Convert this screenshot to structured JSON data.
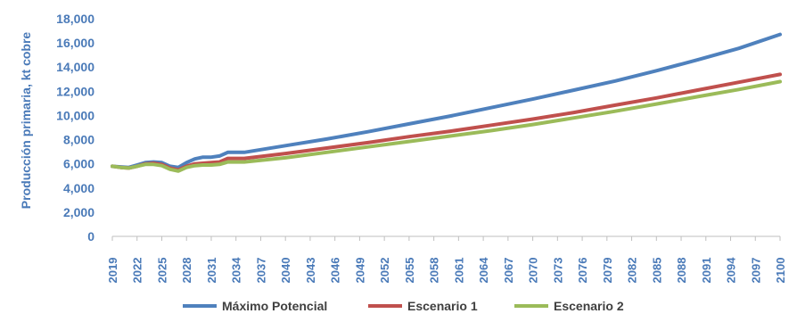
{
  "chart_data": {
    "type": "line",
    "title": "",
    "xlabel": "",
    "ylabel": "Producción primaria, kt cobre",
    "ylim": [
      0,
      18000
    ],
    "yticks": [
      0,
      2000,
      4000,
      6000,
      8000,
      10000,
      12000,
      14000,
      16000,
      18000
    ],
    "ytick_labels": [
      "0",
      "2,000",
      "4,000",
      "6,000",
      "8,000",
      "10,000",
      "12,000",
      "14,000",
      "16,000",
      "18,000"
    ],
    "xlim": [
      2019,
      2100
    ],
    "xticks": [
      "2019",
      "2022",
      "2025",
      "2028",
      "2031",
      "2034",
      "2037",
      "2040",
      "2043",
      "2046",
      "2049",
      "2052",
      "2055",
      "2058",
      "2061",
      "2064",
      "2067",
      "2070",
      "2073",
      "2076",
      "2079",
      "2082",
      "2085",
      "2088",
      "2091",
      "2094",
      "2097",
      "2100"
    ],
    "grid": false,
    "legend_position": "bottom",
    "axis_text_color": "#4a7ab8",
    "series": [
      {
        "name": "Máximo Potencial",
        "color": "#4f81bd",
        "points": [
          [
            2019,
            5800
          ],
          [
            2020,
            5750
          ],
          [
            2021,
            5700
          ],
          [
            2022,
            5900
          ],
          [
            2023,
            6100
          ],
          [
            2024,
            6150
          ],
          [
            2025,
            6100
          ],
          [
            2026,
            5800
          ],
          [
            2027,
            5700
          ],
          [
            2028,
            6100
          ],
          [
            2029,
            6400
          ],
          [
            2030,
            6550
          ],
          [
            2031,
            6550
          ],
          [
            2032,
            6650
          ],
          [
            2033,
            6950
          ],
          [
            2034,
            6950
          ],
          [
            2035,
            6950
          ],
          [
            2040,
            7500
          ],
          [
            2045,
            8050
          ],
          [
            2050,
            8650
          ],
          [
            2055,
            9300
          ],
          [
            2060,
            9950
          ],
          [
            2065,
            10650
          ],
          [
            2070,
            11350
          ],
          [
            2075,
            12100
          ],
          [
            2080,
            12850
          ],
          [
            2085,
            13700
          ],
          [
            2090,
            14600
          ],
          [
            2095,
            15550
          ],
          [
            2100,
            16700
          ]
        ]
      },
      {
        "name": "Escenario 1",
        "color": "#c0504d",
        "points": [
          [
            2019,
            5800
          ],
          [
            2020,
            5700
          ],
          [
            2021,
            5650
          ],
          [
            2022,
            5800
          ],
          [
            2023,
            6000
          ],
          [
            2024,
            6050
          ],
          [
            2025,
            5950
          ],
          [
            2026,
            5650
          ],
          [
            2027,
            5500
          ],
          [
            2028,
            5800
          ],
          [
            2029,
            6000
          ],
          [
            2030,
            6050
          ],
          [
            2031,
            6100
          ],
          [
            2032,
            6150
          ],
          [
            2033,
            6450
          ],
          [
            2034,
            6450
          ],
          [
            2035,
            6450
          ],
          [
            2040,
            6850
          ],
          [
            2045,
            7300
          ],
          [
            2050,
            7750
          ],
          [
            2055,
            8250
          ],
          [
            2060,
            8700
          ],
          [
            2065,
            9200
          ],
          [
            2070,
            9700
          ],
          [
            2075,
            10250
          ],
          [
            2080,
            10850
          ],
          [
            2085,
            11450
          ],
          [
            2090,
            12100
          ],
          [
            2095,
            12750
          ],
          [
            2100,
            13400
          ]
        ]
      },
      {
        "name": "Escenario 2",
        "color": "#9bbb59",
        "points": [
          [
            2019,
            5800
          ],
          [
            2020,
            5700
          ],
          [
            2021,
            5650
          ],
          [
            2022,
            5800
          ],
          [
            2023,
            5950
          ],
          [
            2024,
            5950
          ],
          [
            2025,
            5850
          ],
          [
            2026,
            5550
          ],
          [
            2027,
            5400
          ],
          [
            2028,
            5700
          ],
          [
            2029,
            5850
          ],
          [
            2030,
            5900
          ],
          [
            2031,
            5900
          ],
          [
            2032,
            5950
          ],
          [
            2033,
            6150
          ],
          [
            2034,
            6150
          ],
          [
            2035,
            6150
          ],
          [
            2040,
            6500
          ],
          [
            2045,
            6950
          ],
          [
            2050,
            7400
          ],
          [
            2055,
            7850
          ],
          [
            2060,
            8300
          ],
          [
            2065,
            8750
          ],
          [
            2070,
            9250
          ],
          [
            2075,
            9800
          ],
          [
            2080,
            10350
          ],
          [
            2085,
            10950
          ],
          [
            2090,
            11550
          ],
          [
            2095,
            12150
          ],
          [
            2100,
            12800
          ]
        ]
      }
    ]
  }
}
